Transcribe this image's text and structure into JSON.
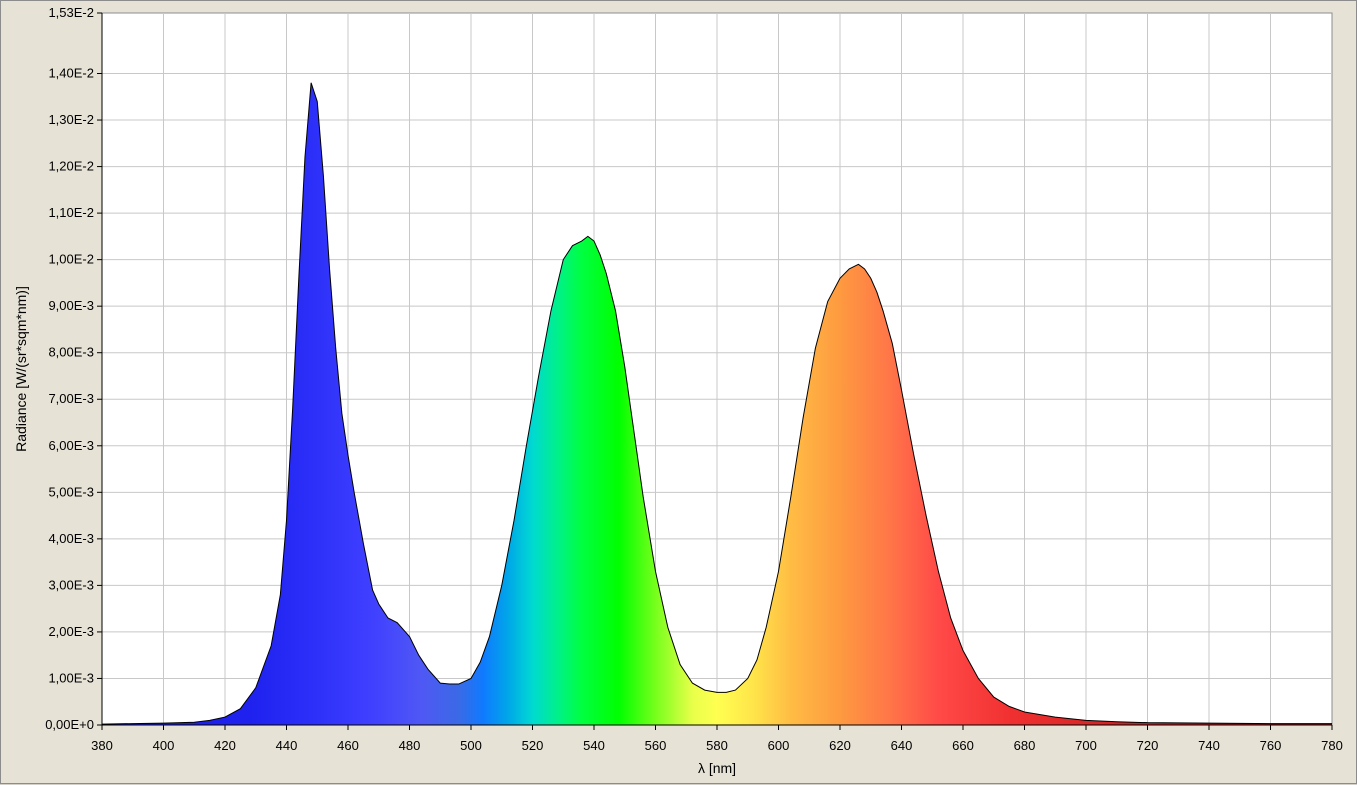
{
  "chart_data": {
    "type": "area",
    "title": "",
    "xlabel": "λ [nm]",
    "ylabel": "Radiance [W/(sr*sqm*nm)]",
    "xlim": [
      380,
      780
    ],
    "ylim": [
      0,
      0.0153
    ],
    "grid": true,
    "x_ticks": [
      380,
      400,
      420,
      440,
      460,
      480,
      500,
      520,
      540,
      560,
      580,
      600,
      620,
      640,
      660,
      680,
      700,
      720,
      740,
      760,
      780
    ],
    "x_tick_labels": [
      "380",
      "400",
      "420",
      "440",
      "460",
      "480",
      "500",
      "520",
      "540",
      "560",
      "580",
      "600",
      "620",
      "640",
      "660",
      "680",
      "700",
      "720",
      "740",
      "760",
      "780"
    ],
    "y_ticks": [
      0,
      0.001,
      0.002,
      0.003,
      0.004,
      0.005,
      0.006,
      0.007,
      0.008,
      0.009,
      0.01,
      0.011,
      0.012,
      0.013,
      0.014,
      0.0153
    ],
    "y_tick_labels": [
      "0,00E+0",
      "1,00E-3",
      "2,00E-3",
      "3,00E-3",
      "4,00E-3",
      "5,00E-3",
      "6,00E-3",
      "7,00E-3",
      "8,00E-3",
      "9,00E-3",
      "1,00E-2",
      "1,10E-2",
      "1,20E-2",
      "1,30E-2",
      "1,40E-2",
      "1,53E-2"
    ],
    "series": [
      {
        "x": [
          380,
          390,
          400,
          410,
          415,
          420,
          425,
          430,
          435,
          438,
          440,
          442,
          444,
          446,
          448,
          450,
          452,
          454,
          456,
          458,
          460,
          462,
          465,
          468,
          470,
          473,
          476,
          480,
          483,
          486,
          490,
          493,
          496,
          500,
          503,
          506,
          510,
          514,
          518,
          522,
          526,
          530,
          533,
          536,
          538,
          540,
          542,
          544,
          547,
          550,
          553,
          556,
          560,
          564,
          568,
          572,
          576,
          580,
          583,
          586,
          590,
          593,
          596,
          600,
          604,
          608,
          612,
          616,
          620,
          623,
          626,
          628,
          630,
          632,
          634,
          637,
          640,
          644,
          648,
          652,
          656,
          660,
          665,
          670,
          675,
          680,
          690,
          700,
          710,
          720,
          740,
          760,
          780
        ],
        "y": [
          2e-05,
          3e-05,
          4e-05,
          6e-05,
          0.0001,
          0.00017,
          0.00035,
          0.0008,
          0.0017,
          0.0028,
          0.0044,
          0.0068,
          0.0096,
          0.0122,
          0.0138,
          0.0134,
          0.0118,
          0.0098,
          0.0081,
          0.0067,
          0.0058,
          0.005,
          0.0039,
          0.0029,
          0.0026,
          0.0023,
          0.0022,
          0.0019,
          0.0015,
          0.0012,
          0.0009,
          0.00088,
          0.00088,
          0.001,
          0.00135,
          0.0019,
          0.003,
          0.0044,
          0.006,
          0.0075,
          0.0089,
          0.01,
          0.0103,
          0.0104,
          0.0105,
          0.0104,
          0.0101,
          0.0097,
          0.0089,
          0.0077,
          0.0063,
          0.0049,
          0.0033,
          0.0021,
          0.0013,
          0.0009,
          0.00075,
          0.0007,
          0.0007,
          0.00075,
          0.001,
          0.0014,
          0.0021,
          0.0033,
          0.0049,
          0.0066,
          0.0081,
          0.0091,
          0.0096,
          0.0098,
          0.0099,
          0.0098,
          0.0096,
          0.0093,
          0.0089,
          0.0082,
          0.0072,
          0.0058,
          0.0045,
          0.0033,
          0.0023,
          0.0016,
          0.001,
          0.0006,
          0.0004,
          0.00028,
          0.00017,
          0.0001,
          7e-05,
          5e-05,
          4e-05,
          3e-05,
          3e-05
        ]
      }
    ]
  }
}
